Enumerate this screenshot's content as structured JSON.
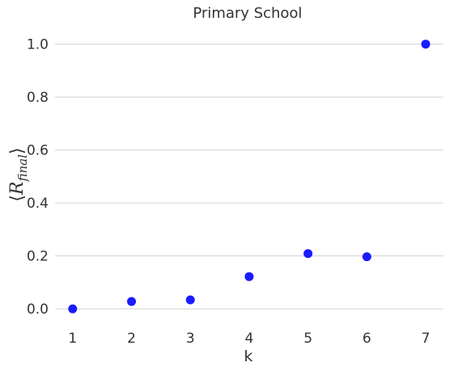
{
  "chart_data": {
    "type": "scatter",
    "title": "Primary School",
    "xlabel": "k",
    "ylabel": {
      "open": "⟨",
      "main": "R",
      "sub": "final",
      "close": "⟩"
    },
    "x": [
      1,
      2,
      3,
      4,
      5,
      6,
      7
    ],
    "y": [
      0.0,
      0.028,
      0.034,
      0.122,
      0.209,
      0.197,
      1.0
    ],
    "xticks": [
      1,
      2,
      3,
      4,
      5,
      6,
      7
    ],
    "yticks": [
      0.0,
      0.2,
      0.4,
      0.6,
      0.8,
      1.0
    ],
    "ytick_labels": [
      "0.0",
      "0.2",
      "0.4",
      "0.6",
      "0.8",
      "1.0"
    ],
    "xlim": [
      0.7,
      7.3
    ],
    "ylim": [
      -0.085,
      1.075
    ],
    "grid": "horizontal",
    "marker_color": "#1a1aff"
  }
}
